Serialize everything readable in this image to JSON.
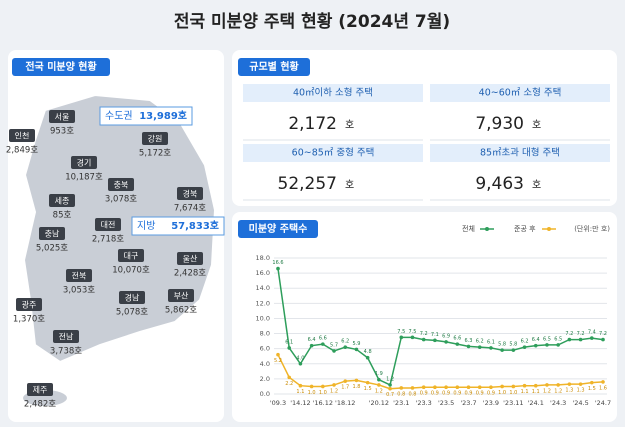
{
  "title": "전국 미분양 주택 현황 (2024년 7월)",
  "map": {
    "label": "전국 미분양 현황",
    "regions": [
      {
        "name": "서울",
        "count": "953호"
      },
      {
        "name": "인천",
        "count": "2,849호"
      },
      {
        "name": "경기",
        "count": "10,187호"
      },
      {
        "name": "강원",
        "count": "5,172호"
      },
      {
        "name": "충북",
        "count": "3,078호"
      },
      {
        "name": "세종",
        "count": "85호"
      },
      {
        "name": "충남",
        "count": "5,025호"
      },
      {
        "name": "대전",
        "count": "2,718호"
      },
      {
        "name": "경북",
        "count": "7,674호"
      },
      {
        "name": "전북",
        "count": "3,053호"
      },
      {
        "name": "대구",
        "count": "10,070호"
      },
      {
        "name": "울산",
        "count": "2,428호"
      },
      {
        "name": "광주",
        "count": "1,370호"
      },
      {
        "name": "경남",
        "count": "5,078호"
      },
      {
        "name": "부산",
        "count": "5,862호"
      },
      {
        "name": "전남",
        "count": "3,738호"
      },
      {
        "name": "제주",
        "count": "2,482호"
      }
    ],
    "totals": [
      {
        "name": "수도권",
        "count": "13,989호"
      },
      {
        "name": "지방",
        "count": "57,833호"
      }
    ]
  },
  "size": {
    "label": "규모별 현황",
    "cells": [
      {
        "label": "40㎡이하 소형 주택",
        "value": "2,172",
        "unit": "호"
      },
      {
        "label": "40~60㎡ 소형 주택",
        "value": "7,930",
        "unit": "호"
      },
      {
        "label": "60~85㎡ 중형 주택",
        "value": "52,257",
        "unit": "호"
      },
      {
        "label": "85㎡초과 대형 주택",
        "value": "9,463",
        "unit": "호"
      }
    ]
  },
  "chart_data": {
    "type": "line",
    "title": "미분양 주택수",
    "unit": "(단위:만 호)",
    "categories": [
      "'09.3",
      null,
      "'14.12",
      null,
      "'16.12",
      null,
      "'18.12",
      null,
      null,
      "'20.12",
      null,
      "'23.1",
      null,
      "'23.3",
      null,
      "'23.5",
      null,
      "'23.7",
      null,
      "'23.9",
      null,
      "'23.11",
      null,
      "'24.1",
      null,
      "'24.3",
      null,
      "'24.5",
      null,
      "'24.7"
    ],
    "series": [
      {
        "name": "전체",
        "color": "#2e9e5b",
        "values": [
          16.6,
          6.1,
          4.0,
          6.4,
          6.6,
          5.7,
          6.2,
          5.9,
          4.8,
          1.9,
          1.2,
          7.5,
          7.5,
          7.2,
          7.1,
          6.9,
          6.6,
          6.3,
          6.2,
          6.1,
          5.8,
          5.8,
          6.2,
          6.4,
          6.5,
          6.5,
          7.2,
          7.2,
          7.4,
          7.2
        ],
        "value_labels": [
          "16.6",
          "6.1",
          "4.0",
          "6.4",
          "6.6",
          "5.7",
          "6.2",
          "5.9",
          "4.8",
          "1.9",
          "1.2",
          "7.5",
          "7.5",
          "7.2",
          "7.1",
          "6.9",
          "6.6",
          "6.3",
          "6.2",
          "6.1",
          "5.8",
          "5.8",
          "6.2",
          "6.4",
          "6.5",
          "6.5",
          "7.2",
          "7.2",
          "7.4",
          "7.2"
        ]
      },
      {
        "name": "준공 후",
        "color": "#f0b429",
        "values": [
          5.2,
          2.2,
          1.1,
          1.0,
          1.0,
          1.2,
          1.7,
          1.8,
          1.5,
          1.2,
          0.7,
          0.8,
          0.8,
          0.9,
          0.9,
          0.9,
          0.9,
          0.9,
          0.9,
          0.9,
          1.0,
          1.0,
          1.1,
          1.1,
          1.2,
          1.2,
          1.3,
          1.3,
          1.5,
          1.6
        ],
        "value_labels": [
          "5.2",
          "2.2",
          "1.1",
          "1.0",
          "1.0",
          "1.2",
          "1.7",
          "1.8",
          "1.5",
          "1.2",
          "0.7",
          "0.8",
          "0.8",
          "0.9",
          "0.9",
          "0.9",
          "0.9",
          "0.9",
          "0.9",
          "0.9",
          "1.0",
          "1.0",
          "1.1",
          "1.1",
          "1.2",
          "1.2",
          "1.3",
          "1.3",
          "1.5",
          "1.6"
        ]
      }
    ],
    "ylim": [
      0,
      18
    ],
    "yticks": [
      {
        "value": 0,
        "label": "0.0"
      },
      {
        "value": 2,
        "label": "2.0"
      },
      {
        "value": 4,
        "label": "4.0"
      },
      {
        "value": 6,
        "label": "6.0"
      },
      {
        "value": 8,
        "label": "8.0"
      },
      {
        "value": 10,
        "label": "10.0"
      },
      {
        "value": 12,
        "label": "12.0"
      },
      {
        "value": 14,
        "label": "14.0"
      },
      {
        "value": 16,
        "label": "16.0"
      },
      {
        "value": 18,
        "label": "18.0"
      }
    ],
    "grid": true
  }
}
